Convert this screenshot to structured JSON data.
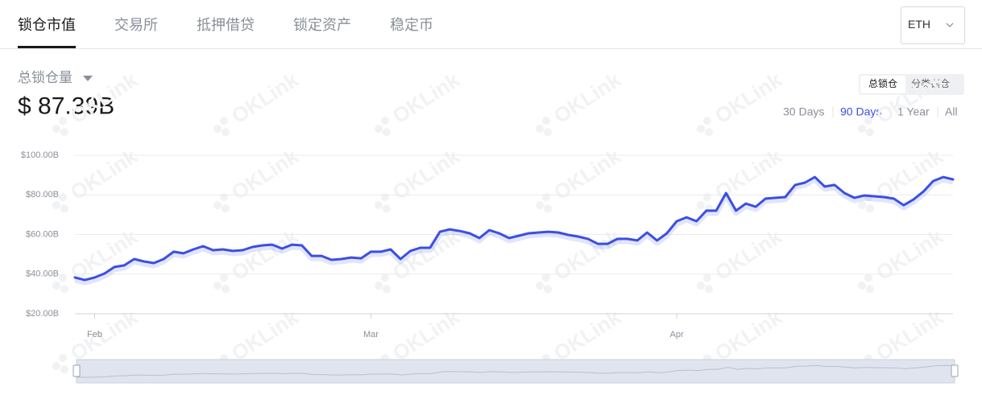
{
  "tabs": [
    "锁仓市值",
    "交易所",
    "抵押借贷",
    "锁定资产",
    "稳定币"
  ],
  "active_tab": 0,
  "asset_select": "ETH",
  "metric": {
    "label": "总锁仓量",
    "value": "$ 87.39B"
  },
  "view_toggle": [
    "总锁仓",
    "分类锁仓"
  ],
  "active_view": 0,
  "ranges": [
    "30 Days",
    "90 Days",
    "1 Year",
    "All"
  ],
  "active_range": 1,
  "watermark": "OKLink",
  "chart_data": {
    "type": "line",
    "color": "#3b4fe4",
    "grid": true,
    "categories": [
      null,
      null,
      "Feb",
      null,
      null,
      null,
      null,
      null,
      null,
      null,
      null,
      null,
      null,
      null,
      null,
      null,
      null,
      null,
      null,
      null,
      null,
      null,
      null,
      null,
      null,
      null,
      null,
      null,
      null,
      null,
      "Mar",
      null,
      null,
      null,
      null,
      null,
      null,
      null,
      null,
      null,
      null,
      null,
      null,
      null,
      null,
      null,
      null,
      null,
      null,
      null,
      null,
      null,
      null,
      null,
      null,
      null,
      null,
      null,
      null,
      null,
      null,
      "Apr",
      null,
      null,
      null,
      null,
      null,
      null,
      null,
      null,
      null,
      null,
      null,
      null,
      null,
      null,
      null,
      null,
      null,
      null,
      null,
      null,
      null,
      null,
      null,
      null,
      null,
      null,
      null,
      null
    ],
    "values": [
      38.3,
      37,
      38.3,
      40.3,
      43.6,
      44.4,
      47.6,
      46.4,
      45.6,
      47.6,
      51.3,
      50.5,
      52.5,
      54.1,
      52.1,
      52.5,
      51.7,
      52.1,
      53.7,
      54.5,
      54.9,
      52.9,
      54.9,
      54.5,
      49.2,
      49.2,
      47.2,
      47.6,
      48.4,
      48,
      51.3,
      51.3,
      52.5,
      47.6,
      51.7,
      53.3,
      53.3,
      61.4,
      62.6,
      61.8,
      60.6,
      58.2,
      62.2,
      60.6,
      58.2,
      59.4,
      60.6,
      61,
      61.4,
      61,
      59.8,
      59,
      57.8,
      55.3,
      55.3,
      57.8,
      57.8,
      57,
      61,
      57,
      60.6,
      66.7,
      68.7,
      66.7,
      72,
      72,
      80.9,
      72,
      75.6,
      74,
      78.1,
      78.5,
      78.9,
      85,
      86.2,
      89,
      84.2,
      85,
      80.9,
      78.5,
      79.7,
      79.3,
      78.9,
      78.1,
      74.8,
      77.7,
      81.7,
      87,
      89,
      87.8
    ],
    "ylim": [
      20,
      100
    ],
    "yticks": [
      {
        "value": 20,
        "label": "$20.00B"
      },
      {
        "value": 40,
        "label": "$40.00B"
      },
      {
        "value": 60,
        "label": "$60.00B"
      },
      {
        "value": 80,
        "label": "$80.00B"
      },
      {
        "value": 100,
        "label": "$100.00B"
      }
    ]
  }
}
